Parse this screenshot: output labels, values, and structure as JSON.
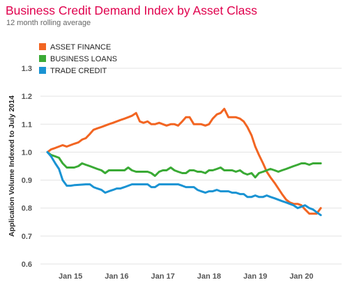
{
  "chart_data": {
    "type": "line",
    "title": "Business Credit Demand Index by Asset Class",
    "subtitle": "12 month rolling average",
    "ylabel": "Application Volume Indexed to July 2014",
    "xlabel": "",
    "ylim": [
      0.6,
      1.3
    ],
    "yticks": [
      "0.6",
      "0.7",
      "0.8",
      "0.9",
      "1.0",
      "1.1",
      "1.2",
      "1.3"
    ],
    "xlim": [
      2014.5,
      2020.75
    ],
    "xticks": [
      {
        "label": "Jan 15",
        "x": 2015.0
      },
      {
        "label": "Jan 16",
        "x": 2016.0
      },
      {
        "label": "Jan 17",
        "x": 2017.0
      },
      {
        "label": "Jan 18",
        "x": 2018.0
      },
      {
        "label": "Jan 19",
        "x": 2019.0
      },
      {
        "label": "Jan 20",
        "x": 2020.0
      }
    ],
    "grid": "horizontal",
    "legend_position": "top-left",
    "series": [
      {
        "name": "ASSET FINANCE",
        "color": "#f26522",
        "points": [
          [
            2014.5,
            1.0
          ],
          [
            2014.58,
            1.01
          ],
          [
            2014.67,
            1.015
          ],
          [
            2014.75,
            1.02
          ],
          [
            2014.83,
            1.025
          ],
          [
            2014.92,
            1.02
          ],
          [
            2015.0,
            1.025
          ],
          [
            2015.08,
            1.03
          ],
          [
            2015.17,
            1.035
          ],
          [
            2015.25,
            1.045
          ],
          [
            2015.33,
            1.05
          ],
          [
            2015.42,
            1.065
          ],
          [
            2015.5,
            1.08
          ],
          [
            2015.58,
            1.085
          ],
          [
            2015.67,
            1.09
          ],
          [
            2015.75,
            1.095
          ],
          [
            2015.83,
            1.1
          ],
          [
            2015.92,
            1.105
          ],
          [
            2016.0,
            1.11
          ],
          [
            2016.08,
            1.115
          ],
          [
            2016.17,
            1.12
          ],
          [
            2016.25,
            1.125
          ],
          [
            2016.33,
            1.13
          ],
          [
            2016.42,
            1.14
          ],
          [
            2016.5,
            1.11
          ],
          [
            2016.58,
            1.105
          ],
          [
            2016.67,
            1.11
          ],
          [
            2016.75,
            1.1
          ],
          [
            2016.83,
            1.1
          ],
          [
            2016.92,
            1.105
          ],
          [
            2017.0,
            1.1
          ],
          [
            2017.08,
            1.095
          ],
          [
            2017.17,
            1.1
          ],
          [
            2017.25,
            1.1
          ],
          [
            2017.33,
            1.095
          ],
          [
            2017.42,
            1.11
          ],
          [
            2017.5,
            1.125
          ],
          [
            2017.58,
            1.125
          ],
          [
            2017.67,
            1.1
          ],
          [
            2017.75,
            1.1
          ],
          [
            2017.83,
            1.1
          ],
          [
            2017.92,
            1.095
          ],
          [
            2018.0,
            1.1
          ],
          [
            2018.08,
            1.12
          ],
          [
            2018.17,
            1.135
          ],
          [
            2018.25,
            1.14
          ],
          [
            2018.33,
            1.155
          ],
          [
            2018.42,
            1.125
          ],
          [
            2018.5,
            1.125
          ],
          [
            2018.58,
            1.125
          ],
          [
            2018.67,
            1.12
          ],
          [
            2018.75,
            1.11
          ],
          [
            2018.83,
            1.09
          ],
          [
            2018.92,
            1.06
          ],
          [
            2019.0,
            1.02
          ],
          [
            2019.08,
            0.99
          ],
          [
            2019.17,
            0.96
          ],
          [
            2019.25,
            0.93
          ],
          [
            2019.33,
            0.91
          ],
          [
            2019.42,
            0.89
          ],
          [
            2019.5,
            0.87
          ],
          [
            2019.58,
            0.85
          ],
          [
            2019.67,
            0.83
          ],
          [
            2019.75,
            0.82
          ],
          [
            2019.83,
            0.815
          ],
          [
            2019.92,
            0.815
          ],
          [
            2020.0,
            0.81
          ],
          [
            2020.08,
            0.795
          ],
          [
            2020.17,
            0.78
          ],
          [
            2020.25,
            0.78
          ],
          [
            2020.33,
            0.78
          ],
          [
            2020.42,
            0.8
          ]
        ]
      },
      {
        "name": "BUSINESS LOANS",
        "color": "#3aaa35",
        "points": [
          [
            2014.5,
            1.0
          ],
          [
            2014.58,
            0.99
          ],
          [
            2014.67,
            0.985
          ],
          [
            2014.75,
            0.98
          ],
          [
            2014.83,
            0.96
          ],
          [
            2014.92,
            0.945
          ],
          [
            2015.0,
            0.945
          ],
          [
            2015.08,
            0.945
          ],
          [
            2015.17,
            0.95
          ],
          [
            2015.25,
            0.96
          ],
          [
            2015.33,
            0.955
          ],
          [
            2015.42,
            0.95
          ],
          [
            2015.5,
            0.945
          ],
          [
            2015.58,
            0.94
          ],
          [
            2015.67,
            0.935
          ],
          [
            2015.75,
            0.925
          ],
          [
            2015.83,
            0.935
          ],
          [
            2015.92,
            0.935
          ],
          [
            2016.0,
            0.935
          ],
          [
            2016.08,
            0.935
          ],
          [
            2016.17,
            0.935
          ],
          [
            2016.25,
            0.945
          ],
          [
            2016.33,
            0.935
          ],
          [
            2016.42,
            0.93
          ],
          [
            2016.5,
            0.93
          ],
          [
            2016.58,
            0.93
          ],
          [
            2016.67,
            0.93
          ],
          [
            2016.75,
            0.925
          ],
          [
            2016.83,
            0.915
          ],
          [
            2016.92,
            0.93
          ],
          [
            2017.0,
            0.935
          ],
          [
            2017.08,
            0.935
          ],
          [
            2017.17,
            0.945
          ],
          [
            2017.25,
            0.935
          ],
          [
            2017.33,
            0.93
          ],
          [
            2017.42,
            0.925
          ],
          [
            2017.5,
            0.925
          ],
          [
            2017.58,
            0.935
          ],
          [
            2017.67,
            0.935
          ],
          [
            2017.75,
            0.93
          ],
          [
            2017.83,
            0.93
          ],
          [
            2017.92,
            0.925
          ],
          [
            2018.0,
            0.935
          ],
          [
            2018.08,
            0.935
          ],
          [
            2018.17,
            0.94
          ],
          [
            2018.25,
            0.945
          ],
          [
            2018.33,
            0.935
          ],
          [
            2018.42,
            0.935
          ],
          [
            2018.5,
            0.935
          ],
          [
            2018.58,
            0.93
          ],
          [
            2018.67,
            0.935
          ],
          [
            2018.75,
            0.925
          ],
          [
            2018.83,
            0.92
          ],
          [
            2018.92,
            0.925
          ],
          [
            2019.0,
            0.91
          ],
          [
            2019.08,
            0.925
          ],
          [
            2019.17,
            0.93
          ],
          [
            2019.25,
            0.935
          ],
          [
            2019.33,
            0.94
          ],
          [
            2019.42,
            0.935
          ],
          [
            2019.5,
            0.93
          ],
          [
            2019.58,
            0.935
          ],
          [
            2019.67,
            0.94
          ],
          [
            2019.75,
            0.945
          ],
          [
            2019.83,
            0.95
          ],
          [
            2019.92,
            0.955
          ],
          [
            2020.0,
            0.96
          ],
          [
            2020.08,
            0.96
          ],
          [
            2020.17,
            0.955
          ],
          [
            2020.25,
            0.96
          ],
          [
            2020.33,
            0.96
          ],
          [
            2020.42,
            0.96
          ]
        ]
      },
      {
        "name": "TRADE CREDIT",
        "color": "#1a93d3",
        "points": [
          [
            2014.5,
            1.0
          ],
          [
            2014.58,
            0.985
          ],
          [
            2014.67,
            0.96
          ],
          [
            2014.75,
            0.94
          ],
          [
            2014.83,
            0.9
          ],
          [
            2014.92,
            0.88
          ],
          [
            2015.0,
            0.88
          ],
          [
            2015.08,
            0.882
          ],
          [
            2015.17,
            0.883
          ],
          [
            2015.25,
            0.884
          ],
          [
            2015.33,
            0.885
          ],
          [
            2015.42,
            0.885
          ],
          [
            2015.5,
            0.875
          ],
          [
            2015.58,
            0.87
          ],
          [
            2015.67,
            0.865
          ],
          [
            2015.75,
            0.855
          ],
          [
            2015.83,
            0.86
          ],
          [
            2015.92,
            0.865
          ],
          [
            2016.0,
            0.87
          ],
          [
            2016.08,
            0.87
          ],
          [
            2016.17,
            0.875
          ],
          [
            2016.25,
            0.88
          ],
          [
            2016.33,
            0.885
          ],
          [
            2016.42,
            0.885
          ],
          [
            2016.5,
            0.885
          ],
          [
            2016.58,
            0.885
          ],
          [
            2016.67,
            0.885
          ],
          [
            2016.75,
            0.875
          ],
          [
            2016.83,
            0.875
          ],
          [
            2016.92,
            0.885
          ],
          [
            2017.0,
            0.885
          ],
          [
            2017.08,
            0.885
          ],
          [
            2017.17,
            0.885
          ],
          [
            2017.25,
            0.885
          ],
          [
            2017.33,
            0.885
          ],
          [
            2017.42,
            0.88
          ],
          [
            2017.5,
            0.875
          ],
          [
            2017.58,
            0.875
          ],
          [
            2017.67,
            0.875
          ],
          [
            2017.75,
            0.865
          ],
          [
            2017.83,
            0.86
          ],
          [
            2017.92,
            0.855
          ],
          [
            2018.0,
            0.86
          ],
          [
            2018.08,
            0.86
          ],
          [
            2018.17,
            0.865
          ],
          [
            2018.25,
            0.86
          ],
          [
            2018.33,
            0.86
          ],
          [
            2018.42,
            0.86
          ],
          [
            2018.5,
            0.855
          ],
          [
            2018.58,
            0.855
          ],
          [
            2018.67,
            0.85
          ],
          [
            2018.75,
            0.85
          ],
          [
            2018.83,
            0.84
          ],
          [
            2018.92,
            0.84
          ],
          [
            2019.0,
            0.845
          ],
          [
            2019.08,
            0.84
          ],
          [
            2019.17,
            0.84
          ],
          [
            2019.25,
            0.845
          ],
          [
            2019.33,
            0.84
          ],
          [
            2019.42,
            0.835
          ],
          [
            2019.5,
            0.83
          ],
          [
            2019.58,
            0.825
          ],
          [
            2019.67,
            0.82
          ],
          [
            2019.75,
            0.815
          ],
          [
            2019.83,
            0.81
          ],
          [
            2019.92,
            0.8
          ],
          [
            2020.0,
            0.805
          ],
          [
            2020.08,
            0.81
          ],
          [
            2020.17,
            0.8
          ],
          [
            2020.25,
            0.795
          ],
          [
            2020.33,
            0.785
          ],
          [
            2020.42,
            0.775
          ]
        ]
      }
    ]
  }
}
